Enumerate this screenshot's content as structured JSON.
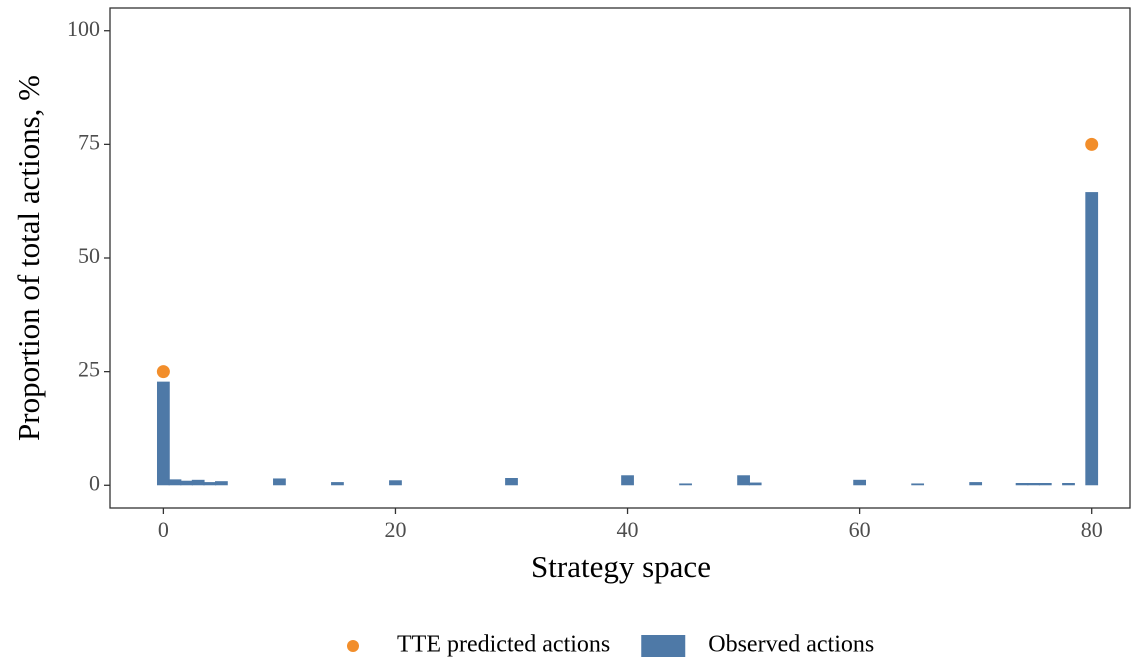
{
  "chart_data": {
    "type": "bar",
    "x_label": "Strategy space",
    "y_label": "Proportion of total actions, %",
    "xlim": [
      -4.6,
      83.3
    ],
    "xticks": [
      0,
      20,
      40,
      60,
      80
    ],
    "ylim": [
      -5,
      105
    ],
    "yticks": [
      0,
      25,
      50,
      75,
      100
    ],
    "grid": false,
    "legend": "bottom",
    "series": [
      {
        "name": "TTE predicted actions",
        "type": "scatter",
        "color": "#f28e2b",
        "x": [
          0,
          80
        ],
        "values": [
          25,
          75
        ]
      },
      {
        "name": "Observed actions",
        "type": "bar",
        "color": "#4e79a7",
        "x": [
          0,
          1,
          2,
          3,
          4,
          5,
          10,
          15,
          20,
          30,
          40,
          45,
          50,
          51,
          60,
          65,
          70,
          74,
          75,
          76,
          78,
          80
        ],
        "values": [
          22.8,
          1.3,
          1.0,
          1.2,
          0.7,
          0.9,
          1.5,
          0.7,
          1.1,
          1.6,
          2.2,
          0.4,
          2.2,
          0.6,
          1.2,
          0.4,
          0.7,
          0.5,
          0.5,
          0.5,
          0.5,
          64.5
        ]
      }
    ]
  }
}
